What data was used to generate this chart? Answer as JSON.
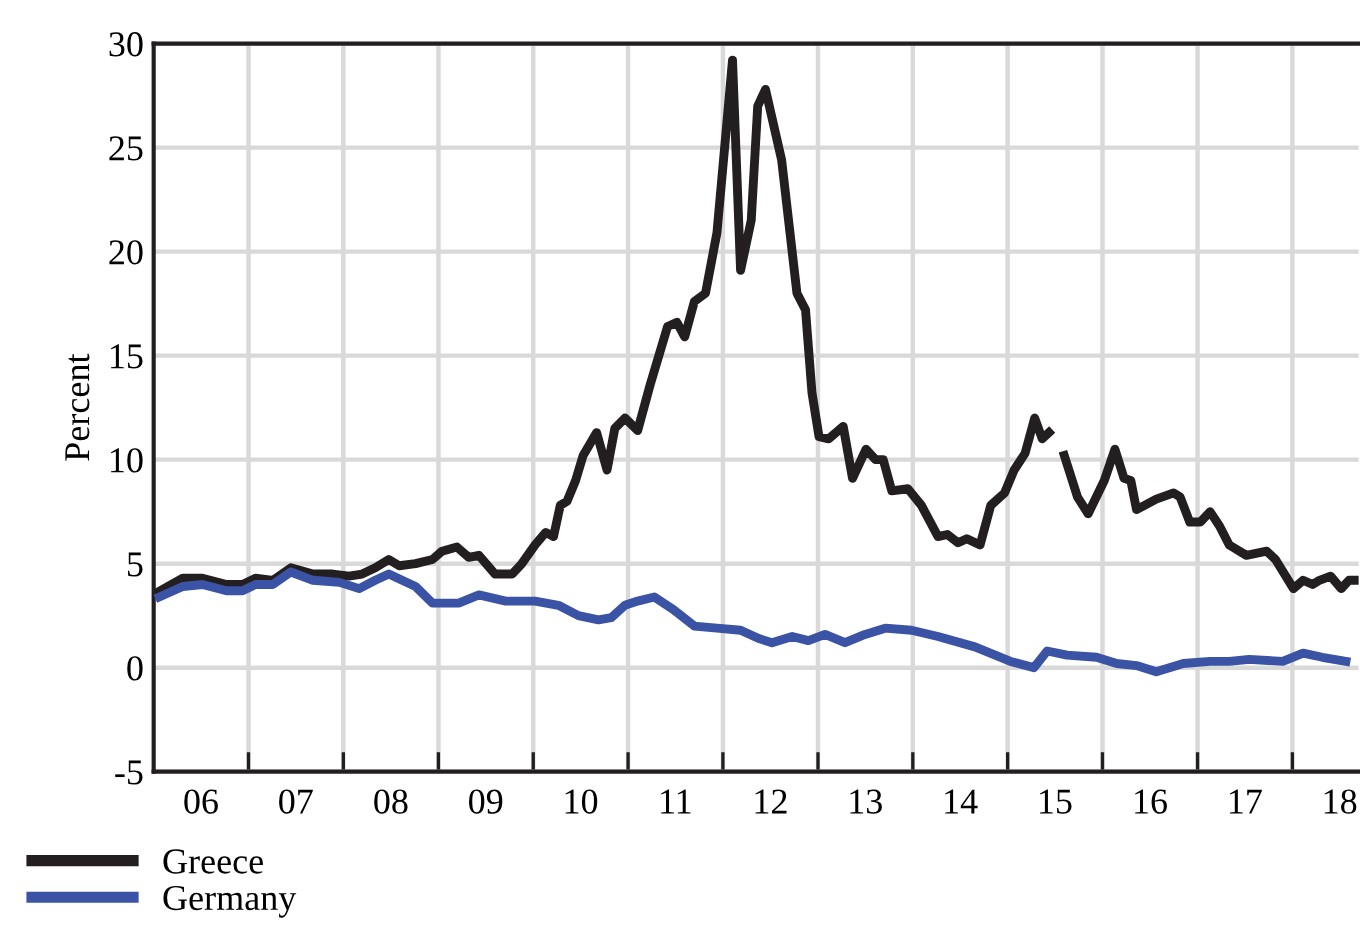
{
  "chart_data": {
    "type": "line",
    "ylabel": "Percent",
    "xlim": [
      "2006-01-01",
      "2018-09-13"
    ],
    "ylim": [
      -5,
      30
    ],
    "yticks": [
      -5,
      0,
      5,
      10,
      15,
      20,
      25,
      30
    ],
    "xticks": [
      {
        "value": "2007-01-01",
        "label": null
      },
      {
        "value": "2008-01-01",
        "label": null
      },
      {
        "value": "2009-01-01",
        "label": null
      },
      {
        "value": "2010-01-01",
        "label": null
      },
      {
        "value": "2011-01-01",
        "label": null
      },
      {
        "value": "2012-01-01",
        "label": null
      },
      {
        "value": "2013-01-01",
        "label": null
      },
      {
        "value": "2014-01-01",
        "label": null
      },
      {
        "value": "2015-01-01",
        "label": null
      },
      {
        "value": "2016-01-01",
        "label": null
      },
      {
        "value": "2017-01-01",
        "label": null
      },
      {
        "value": "2018-01-01",
        "label": null
      },
      {
        "value": "2006-07-02",
        "label": "06"
      },
      {
        "value": "2007-07-02",
        "label": "07"
      },
      {
        "value": "2008-07-02",
        "label": "08"
      },
      {
        "value": "2009-07-02",
        "label": "09"
      },
      {
        "value": "2010-07-02",
        "label": "10"
      },
      {
        "value": "2011-07-02",
        "label": "11"
      },
      {
        "value": "2012-07-02",
        "label": "12"
      },
      {
        "value": "2013-07-02",
        "label": "13"
      },
      {
        "value": "2014-07-02",
        "label": "14"
      },
      {
        "value": "2015-07-02",
        "label": "15"
      },
      {
        "value": "2016-07-02",
        "label": "16"
      },
      {
        "value": "2017-07-02",
        "label": "17"
      },
      {
        "value": "2018-07-02",
        "label": "18"
      }
    ],
    "grid": true,
    "legend": "bottom left",
    "marker": "none",
    "line_style": "solid",
    "series": [
      {
        "name": "Greece",
        "color": "#231f20",
        "x": [
          "2006-01-12",
          "2006-04-23",
          "2006-07-08",
          "2006-10-08",
          "2006-12-09",
          "2007-01-28",
          "2007-04-05",
          "2007-06-13",
          "2007-09-06",
          "2007-11-21",
          "2008-01-23",
          "2008-03-13",
          "2008-05-03",
          "2008-06-24",
          "2008-08-03",
          "2008-10-05",
          "2008-12-09",
          "2009-01-15",
          "2009-03-13",
          "2009-04-28",
          "2009-06-06",
          "2009-08-07",
          "2009-10-12",
          "2009-11-18",
          "2010-01-08",
          "2010-02-18",
          "2010-03-20",
          "2010-04-15",
          "2010-05-11",
          "2010-06-13",
          "2010-07-12",
          "2010-09-02",
          "2010-10-12",
          "2010-11-11",
          "2010-12-20",
          "2011-02-07",
          "2011-03-27",
          "2011-06-02",
          "2011-07-08",
          "2011-08-07",
          "2011-09-13",
          "2011-10-26",
          "2011-12-09",
          "2012-02-07",
          "2012-03-09",
          "2012-04-19",
          "2012-05-14",
          "2012-06-13",
          "2012-08-14",
          "2012-10-12",
          "2012-11-14",
          "2012-12-09",
          "2013-01-05",
          "2013-02-11",
          "2013-04-08",
          "2013-05-14",
          "2013-07-05",
          "2013-08-11",
          "2013-09-09",
          "2013-10-12",
          "2013-12-13",
          "2014-02-03",
          "2014-04-08",
          "2014-05-14",
          "2014-06-24",
          "2014-07-28",
          "2014-09-17",
          "2014-10-28",
          "2014-12-20",
          "2015-01-26",
          "2015-03-09",
          "2015-04-15",
          "2015-05-14",
          "2015-06-09",
          "2015-07-08",
          "2015-08-07",
          "2015-09-27",
          "2015-11-07",
          "2016-01-08",
          "2016-02-18",
          "2016-03-24",
          "2016-04-19",
          "2016-05-11",
          "2016-07-26",
          "2016-10-01",
          "2016-10-26",
          "2016-12-02",
          "2017-01-12",
          "2017-02-18",
          "2017-03-27",
          "2017-05-03",
          "2017-07-08",
          "2017-09-24",
          "2017-10-28",
          "2018-01-05",
          "2018-02-11",
          "2018-03-20",
          "2018-04-15",
          "2018-05-28",
          "2018-07-08",
          "2018-08-07",
          "2018-09-02"
        ],
        "values": [
          3.6,
          4.3,
          4.3,
          4.0,
          4.0,
          4.3,
          4.2,
          4.8,
          4.5,
          4.5,
          4.4,
          4.5,
          4.8,
          5.2,
          4.9,
          5.0,
          5.2,
          5.6,
          5.8,
          5.3,
          5.4,
          4.5,
          4.5,
          5.0,
          5.9,
          6.5,
          6.3,
          7.8,
          8.0,
          9.0,
          10.2,
          11.3,
          9.5,
          11.5,
          12.0,
          11.4,
          13.6,
          16.4,
          16.6,
          15.9,
          17.6,
          18.0,
          20.9,
          29.2,
          19.1,
          21.5,
          27.0,
          27.8,
          24.4,
          18.0,
          17.2,
          13.2,
          11.1,
          11.0,
          11.6,
          9.1,
          10.5,
          10.0,
          10.0,
          8.5,
          8.6,
          7.8,
          6.3,
          6.4,
          6.0,
          6.2,
          5.9,
          7.8,
          8.4,
          9.5,
          10.3,
          12.0,
          11.0,
          11.3,
          null,
          10.2,
          8.2,
          7.4,
          9.0,
          10.5,
          9.1,
          9.0,
          7.6,
          8.1,
          8.4,
          8.2,
          7.0,
          7.0,
          7.5,
          6.8,
          5.9,
          5.4,
          5.6,
          5.2,
          3.8,
          4.2,
          4.0,
          4.2,
          4.4,
          3.8,
          4.2,
          4.2
        ]
      },
      {
        "name": "Germany",
        "color": "#3a53a4",
        "x": [
          "2006-01-23",
          "2006-04-23",
          "2006-07-08",
          "2006-10-08",
          "2006-12-09",
          "2007-01-28",
          "2007-04-05",
          "2007-06-13",
          "2007-09-06",
          "2007-12-17",
          "2008-03-02",
          "2008-05-03",
          "2008-06-24",
          "2008-10-05",
          "2008-12-09",
          "2009-03-20",
          "2009-06-06",
          "2009-09-17",
          "2010-01-08",
          "2010-04-08",
          "2010-06-24",
          "2010-09-09",
          "2010-10-28",
          "2010-12-20",
          "2011-02-07",
          "2011-04-12",
          "2011-06-24",
          "2011-09-13",
          "2011-12-09",
          "2012-03-09",
          "2012-05-18",
          "2012-07-08",
          "2012-09-24",
          "2012-11-25",
          "2013-01-28",
          "2013-04-15",
          "2013-07-01",
          "2013-09-17",
          "2013-12-27",
          "2014-04-08",
          "2014-08-28",
          "2015-01-12",
          "2015-04-12",
          "2015-06-02",
          "2015-08-18",
          "2015-12-09",
          "2016-02-25",
          "2016-05-11",
          "2016-07-26",
          "2016-11-07",
          "2017-02-18",
          "2017-05-03",
          "2017-07-19",
          "2017-11-25",
          "2018-02-11",
          "2018-04-26",
          "2018-07-26"
        ],
        "values": [
          3.4,
          3.9,
          4.0,
          3.7,
          3.7,
          4.0,
          4.0,
          4.6,
          4.2,
          4.1,
          3.8,
          4.2,
          4.5,
          3.9,
          3.1,
          3.1,
          3.5,
          3.2,
          3.2,
          3.0,
          2.5,
          2.3,
          2.4,
          3.0,
          3.2,
          3.4,
          2.8,
          2.0,
          1.9,
          1.8,
          1.4,
          1.2,
          1.5,
          1.3,
          1.6,
          1.2,
          1.6,
          1.9,
          1.8,
          1.5,
          1.0,
          0.3,
          0.0,
          0.8,
          0.6,
          0.5,
          0.2,
          0.1,
          -0.2,
          0.2,
          0.3,
          0.3,
          0.4,
          0.3,
          0.7,
          0.5,
          0.3
        ]
      }
    ]
  }
}
